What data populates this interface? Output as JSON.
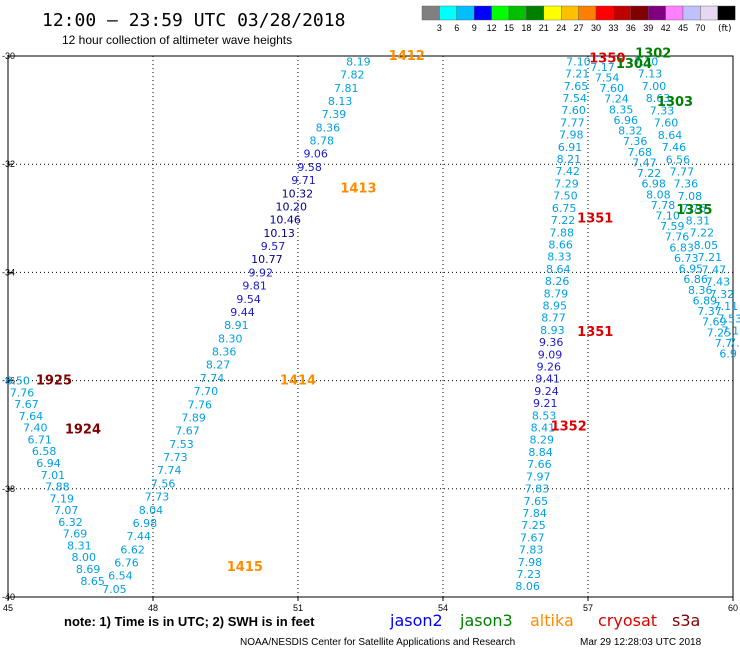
{
  "header": {
    "title": "12:00 – 23:59 UTC 03/28/2018",
    "subtitle": "12 hour collection of altimeter wave heights"
  },
  "scale": {
    "colors": [
      "#808080",
      "#00ffff",
      "#00bfff",
      "#0000ff",
      "#00ff00",
      "#00c000",
      "#008000",
      "#ffff00",
      "#ffc000",
      "#ff8000",
      "#ff0000",
      "#c00000",
      "#800000",
      "#800080",
      "#ff80ff",
      "#c0c0ff",
      "#e6d8f0",
      "#000000"
    ],
    "labels": [
      "3",
      "6",
      "9",
      "12",
      "15",
      "18",
      "21",
      "24",
      "27",
      "30",
      "33",
      "36",
      "39",
      "42",
      "45",
      "70"
    ],
    "unit": "(ft)"
  },
  "chart_data": {
    "type": "scatter",
    "xlim": [
      45,
      60
    ],
    "ylim": [
      -40,
      -30
    ],
    "x_ticks": [
      "45",
      "48",
      "51",
      "54",
      "57",
      "60"
    ],
    "y_ticks": [
      "-30",
      "-32",
      "-34",
      "-36",
      "-38",
      "-40"
    ],
    "grid": true,
    "colors": {
      "wave_low": "#00a0e0",
      "wave_mid": "#1a1ac8",
      "wave_high": "#00008c",
      "jason2": "#0000ff",
      "jason3": "#008000",
      "altika": "#ff8c00",
      "cryosat": "#dd0000",
      "s3a": "#800000"
    },
    "tracks": [
      {
        "lon_start": 52.25,
        "lat_start": -30.1,
        "lon_end": 47.2,
        "lat_end": -39.85,
        "values": [
          "8.19",
          "7.82",
          "7.81",
          "8.13",
          "7.39",
          "8.36",
          "8.78",
          "9.06",
          "9.58",
          "9.71",
          "10.32",
          "10.20",
          "10.46",
          "10.13",
          "9.57",
          "10.77",
          "9.92",
          "9.81",
          "9.54",
          "9.44",
          "8.91",
          "8.30",
          "8.36",
          "8.27",
          "7.74",
          "7.70",
          "7.76",
          "7.89",
          "7.67",
          "7.53",
          "7.73",
          "7.74",
          "7.56",
          "7.73",
          "8.04",
          "6.98",
          "7.44",
          "6.62",
          "6.76",
          "6.54",
          "7.05"
        ]
      },
      {
        "lon_start": 45.2,
        "lat_start": -36.0,
        "lon_end": 46.75,
        "lat_end": -39.7,
        "values": [
          "6.50",
          "7.76",
          "7.67",
          "7.64",
          "7.40",
          "6.71",
          "6.58",
          "6.94",
          "7.01",
          "7.88",
          "7.19",
          "7.07",
          "6.32",
          "7.69",
          "8.31",
          "8.00",
          "8.69",
          "8.65"
        ]
      },
      {
        "lon_start": 56.8,
        "lat_start": -30.1,
        "lon_end": 55.75,
        "lat_end": -39.8,
        "values": [
          "7.10",
          "7.21",
          "7.65",
          "7.54",
          "7.60",
          "7.77",
          "7.98",
          "6.91",
          "8.21",
          "7.42",
          "7.29",
          "7.50",
          "6.75",
          "7.22",
          "7.88",
          "8.66",
          "8.33",
          "8.64",
          "8.26",
          "8.79",
          "8.95",
          "8.77",
          "8.93",
          "9.36",
          "9.09",
          "9.26",
          "9.41",
          "9.24",
          "9.21",
          "8.53",
          "8.41",
          "8.29",
          "8.84",
          "7.66",
          "7.97",
          "7.83",
          "7.65",
          "7.84",
          "7.25",
          "7.67",
          "7.83",
          "7.98",
          "7.23",
          "8.06"
        ]
      },
      {
        "lon_start": 58.2,
        "lat_start": -30.1,
        "lon_end": 60.1,
        "lat_end": -35.3,
        "values": [
          "7.30",
          "7.13",
          "7.00",
          "8.63",
          "7.33",
          "7.60",
          "8.64",
          "7.46",
          "6.56",
          "7.77",
          "7.36",
          "7.08",
          "7.76",
          "8.31",
          "7.22",
          "8.05",
          "7.21",
          "7.47",
          "7.43",
          "7.32",
          "7.11",
          "7.53",
          "7.15",
          "7.2"
        ]
      },
      {
        "lon_start": 57.3,
        "lat_start": -30.2,
        "lon_end": 59.9,
        "lat_end": -35.5,
        "values": [
          "7.17",
          "7.54",
          "7.60",
          "7.24",
          "8.35",
          "6.96",
          "8.32",
          "7.36",
          "7.68",
          "7.47",
          "7.22",
          "6.98",
          "8.08",
          "7.78",
          "7.10",
          "7.59",
          "7.76",
          "6.83",
          "6.73",
          "6.95",
          "6.86",
          "8.36",
          "6.89",
          "7.37",
          "7.69",
          "7.25",
          "7.7",
          "6.9"
        ]
      }
    ],
    "pass_labels": [
      {
        "text": "1412",
        "lon": 53.25,
        "lat": -30.0,
        "sat": "altika"
      },
      {
        "text": "1413",
        "lon": 52.25,
        "lat": -32.45,
        "sat": "altika"
      },
      {
        "text": "1414",
        "lon": 51.0,
        "lat": -36.0,
        "sat": "altika"
      },
      {
        "text": "1415",
        "lon": 49.9,
        "lat": -39.45,
        "sat": "altika"
      },
      {
        "text": "1925",
        "lon": 45.95,
        "lat": -36.0,
        "sat": "s3a"
      },
      {
        "text": "1924",
        "lon": 46.55,
        "lat": -36.9,
        "sat": "s3a"
      },
      {
        "text": "1350",
        "lon": 57.4,
        "lat": -30.05,
        "sat": "cryosat"
      },
      {
        "text": "1351",
        "lon": 57.15,
        "lat": -33.0,
        "sat": "cryosat"
      },
      {
        "text": "1351",
        "lon": 57.15,
        "lat": -35.1,
        "sat": "cryosat"
      },
      {
        "text": "1352",
        "lon": 56.6,
        "lat": -36.85,
        "sat": "cryosat"
      },
      {
        "text": "1302",
        "lon": 58.35,
        "lat": -29.95,
        "sat": "jason3"
      },
      {
        "text": "1304",
        "lon": 57.95,
        "lat": -30.15,
        "sat": "jason3"
      },
      {
        "text": "1303",
        "lon": 58.8,
        "lat": -30.85,
        "sat": "jason3"
      },
      {
        "text": "1335",
        "lon": 59.2,
        "lat": -32.85,
        "sat": "jason3"
      }
    ]
  },
  "footer": {
    "note": "note: 1) Time is in UTC; 2) SWH is in feet",
    "legend": [
      {
        "name": "jason2",
        "color": "#0000ff"
      },
      {
        "name": "jason3",
        "color": "#008000"
      },
      {
        "name": "altika",
        "color": "#ff8c00"
      },
      {
        "name": "cryosat",
        "color": "#dd0000"
      },
      {
        "name": "s3a",
        "color": "#800000"
      }
    ],
    "credit": "NOAA/NESDIS Center for Satellite Applications and Research",
    "timestamp": "Mar 29 12:28:03 UTC 2018"
  }
}
